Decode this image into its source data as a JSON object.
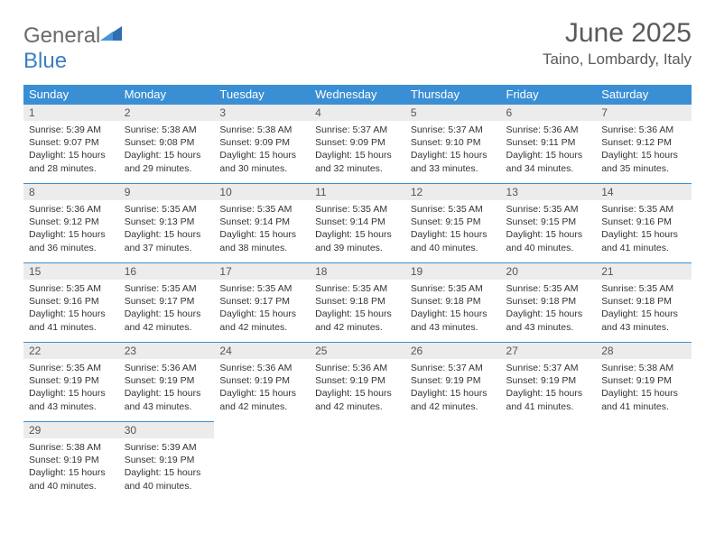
{
  "logo": {
    "general": "General",
    "blue": "Blue"
  },
  "header": {
    "month_title": "June 2025",
    "location": "Taino, Lombardy, Italy"
  },
  "colors": {
    "header_bg": "#3a8fd4",
    "header_text": "#ffffff",
    "daynum_bg": "#ececec",
    "border": "#3a8fd4",
    "logo_gray": "#6a6a6a",
    "logo_blue": "#3a7fc4"
  },
  "weekdays": [
    "Sunday",
    "Monday",
    "Tuesday",
    "Wednesday",
    "Thursday",
    "Friday",
    "Saturday"
  ],
  "weeks": [
    [
      {
        "n": "1",
        "sr": "Sunrise: 5:39 AM",
        "ss": "Sunset: 9:07 PM",
        "dl": "Daylight: 15 hours and 28 minutes."
      },
      {
        "n": "2",
        "sr": "Sunrise: 5:38 AM",
        "ss": "Sunset: 9:08 PM",
        "dl": "Daylight: 15 hours and 29 minutes."
      },
      {
        "n": "3",
        "sr": "Sunrise: 5:38 AM",
        "ss": "Sunset: 9:09 PM",
        "dl": "Daylight: 15 hours and 30 minutes."
      },
      {
        "n": "4",
        "sr": "Sunrise: 5:37 AM",
        "ss": "Sunset: 9:09 PM",
        "dl": "Daylight: 15 hours and 32 minutes."
      },
      {
        "n": "5",
        "sr": "Sunrise: 5:37 AM",
        "ss": "Sunset: 9:10 PM",
        "dl": "Daylight: 15 hours and 33 minutes."
      },
      {
        "n": "6",
        "sr": "Sunrise: 5:36 AM",
        "ss": "Sunset: 9:11 PM",
        "dl": "Daylight: 15 hours and 34 minutes."
      },
      {
        "n": "7",
        "sr": "Sunrise: 5:36 AM",
        "ss": "Sunset: 9:12 PM",
        "dl": "Daylight: 15 hours and 35 minutes."
      }
    ],
    [
      {
        "n": "8",
        "sr": "Sunrise: 5:36 AM",
        "ss": "Sunset: 9:12 PM",
        "dl": "Daylight: 15 hours and 36 minutes."
      },
      {
        "n": "9",
        "sr": "Sunrise: 5:35 AM",
        "ss": "Sunset: 9:13 PM",
        "dl": "Daylight: 15 hours and 37 minutes."
      },
      {
        "n": "10",
        "sr": "Sunrise: 5:35 AM",
        "ss": "Sunset: 9:14 PM",
        "dl": "Daylight: 15 hours and 38 minutes."
      },
      {
        "n": "11",
        "sr": "Sunrise: 5:35 AM",
        "ss": "Sunset: 9:14 PM",
        "dl": "Daylight: 15 hours and 39 minutes."
      },
      {
        "n": "12",
        "sr": "Sunrise: 5:35 AM",
        "ss": "Sunset: 9:15 PM",
        "dl": "Daylight: 15 hours and 40 minutes."
      },
      {
        "n": "13",
        "sr": "Sunrise: 5:35 AM",
        "ss": "Sunset: 9:15 PM",
        "dl": "Daylight: 15 hours and 40 minutes."
      },
      {
        "n": "14",
        "sr": "Sunrise: 5:35 AM",
        "ss": "Sunset: 9:16 PM",
        "dl": "Daylight: 15 hours and 41 minutes."
      }
    ],
    [
      {
        "n": "15",
        "sr": "Sunrise: 5:35 AM",
        "ss": "Sunset: 9:16 PM",
        "dl": "Daylight: 15 hours and 41 minutes."
      },
      {
        "n": "16",
        "sr": "Sunrise: 5:35 AM",
        "ss": "Sunset: 9:17 PM",
        "dl": "Daylight: 15 hours and 42 minutes."
      },
      {
        "n": "17",
        "sr": "Sunrise: 5:35 AM",
        "ss": "Sunset: 9:17 PM",
        "dl": "Daylight: 15 hours and 42 minutes."
      },
      {
        "n": "18",
        "sr": "Sunrise: 5:35 AM",
        "ss": "Sunset: 9:18 PM",
        "dl": "Daylight: 15 hours and 42 minutes."
      },
      {
        "n": "19",
        "sr": "Sunrise: 5:35 AM",
        "ss": "Sunset: 9:18 PM",
        "dl": "Daylight: 15 hours and 43 minutes."
      },
      {
        "n": "20",
        "sr": "Sunrise: 5:35 AM",
        "ss": "Sunset: 9:18 PM",
        "dl": "Daylight: 15 hours and 43 minutes."
      },
      {
        "n": "21",
        "sr": "Sunrise: 5:35 AM",
        "ss": "Sunset: 9:18 PM",
        "dl": "Daylight: 15 hours and 43 minutes."
      }
    ],
    [
      {
        "n": "22",
        "sr": "Sunrise: 5:35 AM",
        "ss": "Sunset: 9:19 PM",
        "dl": "Daylight: 15 hours and 43 minutes."
      },
      {
        "n": "23",
        "sr": "Sunrise: 5:36 AM",
        "ss": "Sunset: 9:19 PM",
        "dl": "Daylight: 15 hours and 43 minutes."
      },
      {
        "n": "24",
        "sr": "Sunrise: 5:36 AM",
        "ss": "Sunset: 9:19 PM",
        "dl": "Daylight: 15 hours and 42 minutes."
      },
      {
        "n": "25",
        "sr": "Sunrise: 5:36 AM",
        "ss": "Sunset: 9:19 PM",
        "dl": "Daylight: 15 hours and 42 minutes."
      },
      {
        "n": "26",
        "sr": "Sunrise: 5:37 AM",
        "ss": "Sunset: 9:19 PM",
        "dl": "Daylight: 15 hours and 42 minutes."
      },
      {
        "n": "27",
        "sr": "Sunrise: 5:37 AM",
        "ss": "Sunset: 9:19 PM",
        "dl": "Daylight: 15 hours and 41 minutes."
      },
      {
        "n": "28",
        "sr": "Sunrise: 5:38 AM",
        "ss": "Sunset: 9:19 PM",
        "dl": "Daylight: 15 hours and 41 minutes."
      }
    ],
    [
      {
        "n": "29",
        "sr": "Sunrise: 5:38 AM",
        "ss": "Sunset: 9:19 PM",
        "dl": "Daylight: 15 hours and 40 minutes."
      },
      {
        "n": "30",
        "sr": "Sunrise: 5:39 AM",
        "ss": "Sunset: 9:19 PM",
        "dl": "Daylight: 15 hours and 40 minutes."
      },
      null,
      null,
      null,
      null,
      null
    ]
  ]
}
